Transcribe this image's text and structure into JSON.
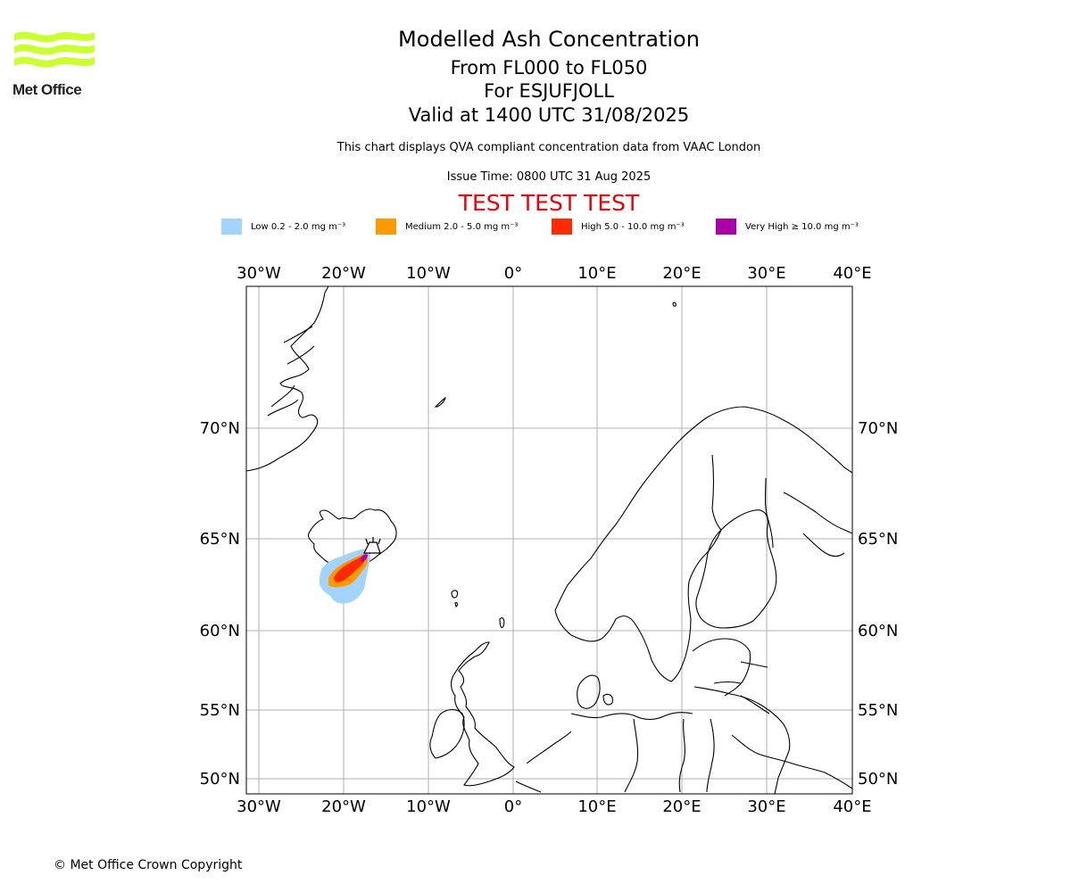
{
  "logo": {
    "text": "Met Office",
    "color": "#ccff33"
  },
  "titles": {
    "line1": "Modelled Ash Concentration",
    "line2": "From FL000 to FL050",
    "line3": "For ESJUFJOLL",
    "line4": "Valid at 1400 UTC 31/08/2025"
  },
  "description": "This chart displays QVA compliant concentration data from VAAC London",
  "issue_time": "Issue Time: 0800 UTC 31 Aug 2025",
  "test_banner": "TEST TEST TEST",
  "legend": [
    {
      "label": "Low 0.2 - 2.0 mg m⁻³",
      "color": "#a3d3ff"
    },
    {
      "label": "Medium 2.0 - 5.0 mg m⁻³",
      "color": "#ff9900"
    },
    {
      "label": "High 5.0 - 10.0 mg m⁻³",
      "color": "#ff2a00"
    },
    {
      "label": "Very High ≥ 10.0 mg m⁻³",
      "color": "#aa00aa"
    }
  ],
  "map": {
    "lon_labels": [
      "30°W",
      "20°W",
      "10°W",
      "0°",
      "10°E",
      "20°E",
      "30°E",
      "40°E"
    ],
    "lat_labels": [
      "70°N",
      "65°N",
      "60°N",
      "55°N",
      "50°N"
    ],
    "gridlines": true
  },
  "copyright": "© Met Office Crown Copyright"
}
